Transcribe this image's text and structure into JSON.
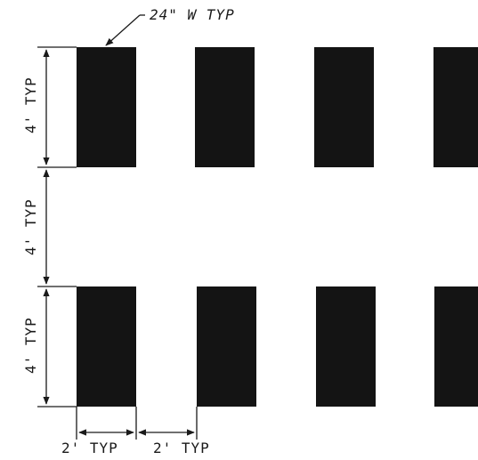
{
  "diagram": {
    "callout_label": "24\" W TYP",
    "dimensions": {
      "stripe_height_top": "4' TYP",
      "gap_between_rows": "4' TYP",
      "stripe_height_bottom": "4' TYP",
      "stripe_width": "2' TYP",
      "stripe_spacing": "2' TYP"
    },
    "stripe_rows": 2,
    "stripes_per_row": 4,
    "colors": {
      "stripe": "#141414",
      "line": "#1a1a1a",
      "background": "#ffffff"
    }
  }
}
